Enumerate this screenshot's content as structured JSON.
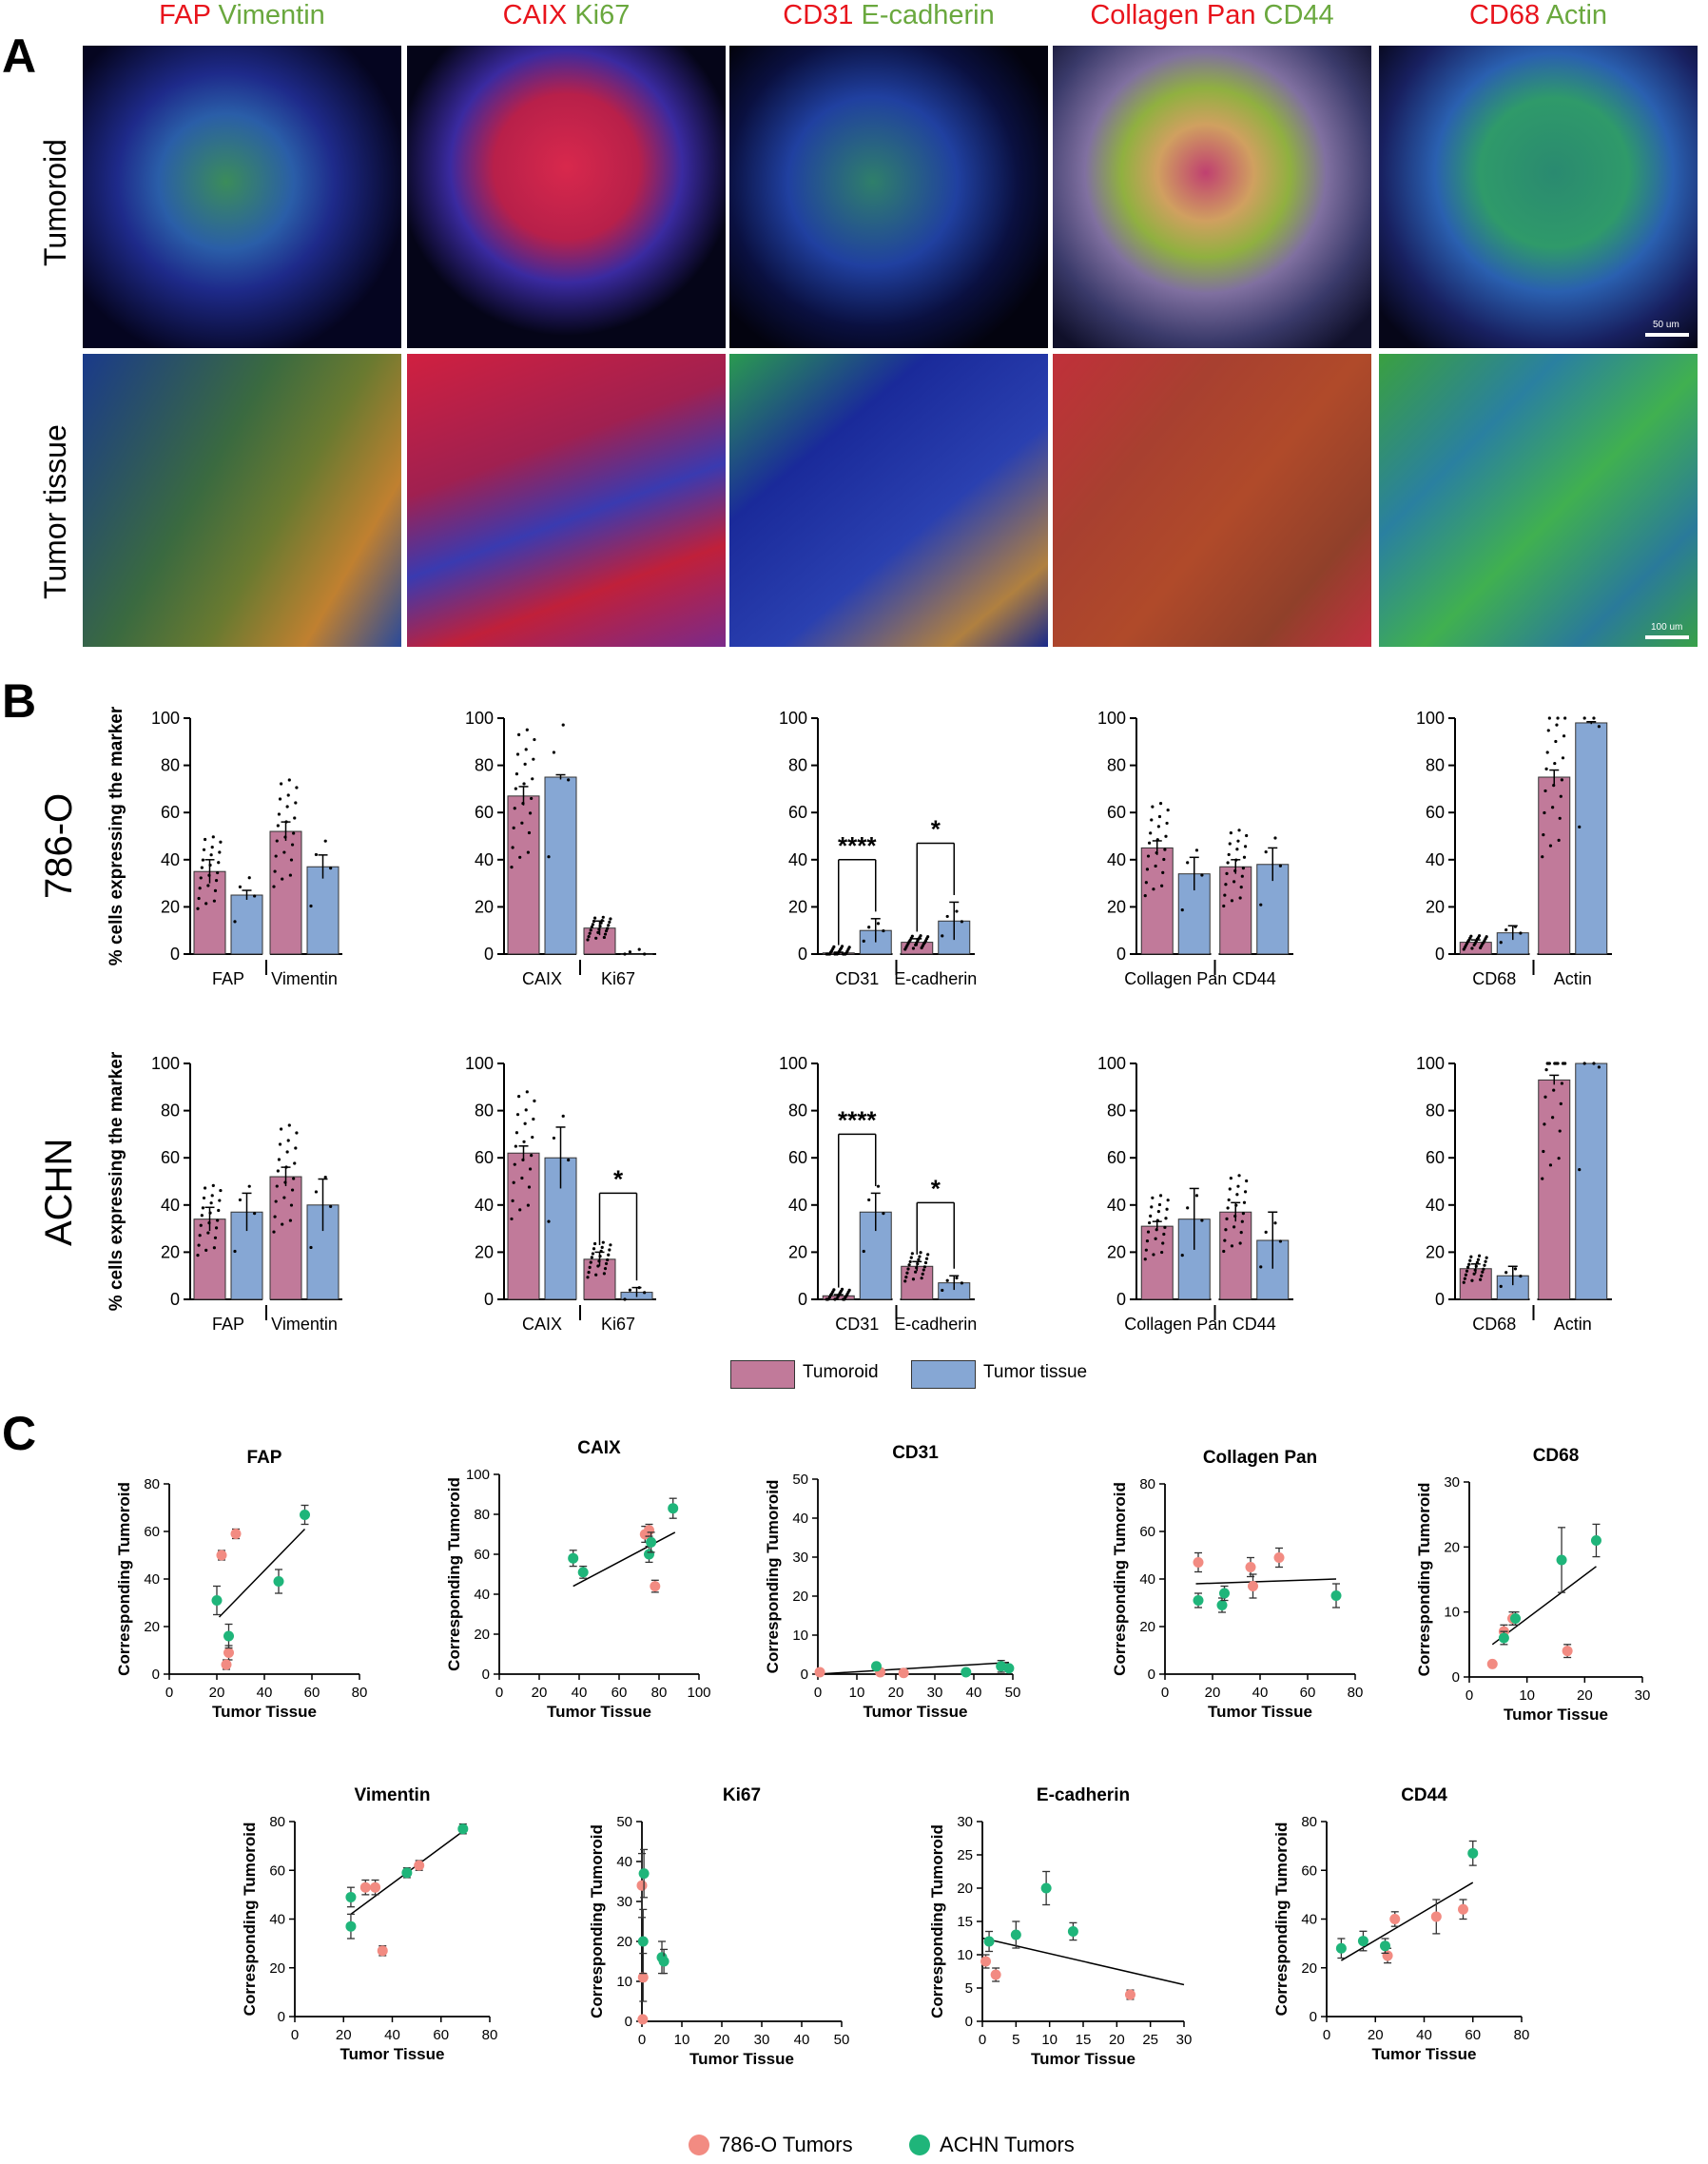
{
  "figure": {
    "panel_letters": {
      "a": "A",
      "b": "B",
      "c": "C"
    },
    "colors": {
      "red": "#e8141c",
      "green": "#6aa83e",
      "tumoroid_bar": "#c17a9a",
      "tissue_bar": "#86a7d4",
      "c786": "#f28b82",
      "achn": "#1fb57a"
    },
    "panel_a": {
      "headers": [
        {
          "red": "FAP",
          "green": "Vimentin"
        },
        {
          "red": "CAIX",
          "green": "Ki67"
        },
        {
          "red": "CD31",
          "green": "E-cadherin"
        },
        {
          "red": "Collagen Pan",
          "green": "CD44"
        },
        {
          "red": "CD68",
          "green": "Actin"
        }
      ],
      "row_labels": [
        "Tumoroid",
        "Tumor tissue"
      ],
      "scale_bars": [
        "50 um",
        "100 um"
      ],
      "image_icons": [
        "fluorescence-micrograph-icon"
      ]
    },
    "panel_b": {
      "y_label": "% cells expressing the marker",
      "cell_lines": [
        "786-O",
        "ACHN"
      ],
      "legend": {
        "tumoroid": "Tumoroid",
        "tissue": "Tumor tissue"
      }
    },
    "panel_c": {
      "x_label": "Tumor Tissue",
      "y_label": "Corresponding Tumoroid",
      "legend": {
        "c786": "786-O Tumors",
        "achn": "ACHN Tumors"
      }
    }
  },
  "chart_data": [
    {
      "type": "bar",
      "cell_line": "786-O",
      "categories": [
        "FAP",
        "Vimentin"
      ],
      "ylim": [
        0,
        100
      ],
      "yticks": [
        0,
        20,
        40,
        60,
        80,
        100
      ],
      "series": [
        {
          "name": "Tumoroid",
          "values": [
            35,
            52
          ],
          "errors": [
            5,
            4
          ]
        },
        {
          "name": "Tumor tissue",
          "values": [
            25,
            37
          ],
          "errors": [
            2,
            5
          ]
        }
      ],
      "significance": []
    },
    {
      "type": "bar",
      "cell_line": "786-O",
      "categories": [
        "CAIX",
        "Ki67"
      ],
      "ylim": [
        0,
        100
      ],
      "yticks": [
        0,
        20,
        40,
        60,
        80,
        100
      ],
      "series": [
        {
          "name": "Tumoroid",
          "values": [
            67,
            11
          ],
          "errors": [
            4,
            3
          ]
        },
        {
          "name": "Tumor tissue",
          "values": [
            75,
            0
          ],
          "errors": [
            1,
            0
          ]
        }
      ],
      "significance": []
    },
    {
      "type": "bar",
      "cell_line": "786-O",
      "categories": [
        "CD31",
        "E-cadherin"
      ],
      "ylim": [
        0,
        100
      ],
      "yticks": [
        0,
        20,
        40,
        60,
        80,
        100
      ],
      "series": [
        {
          "name": "Tumoroid",
          "values": [
            0.5,
            5
          ],
          "errors": [
            0.3,
            1.5
          ]
        },
        {
          "name": "Tumor tissue",
          "values": [
            10,
            14
          ],
          "errors": [
            5,
            8
          ]
        }
      ],
      "significance": [
        "****",
        "*"
      ]
    },
    {
      "type": "bar",
      "cell_line": "786-O",
      "categories": [
        "Collagen Pan",
        "CD44"
      ],
      "ylim": [
        0,
        100
      ],
      "yticks": [
        0,
        20,
        40,
        60,
        80,
        100
      ],
      "series": [
        {
          "name": "Tumoroid",
          "values": [
            45,
            37
          ],
          "errors": [
            3,
            3
          ]
        },
        {
          "name": "Tumor tissue",
          "values": [
            34,
            38
          ],
          "errors": [
            7,
            7
          ]
        }
      ],
      "significance": []
    },
    {
      "type": "bar",
      "cell_line": "786-O",
      "categories": [
        "CD68",
        "Actin"
      ],
      "ylim": [
        0,
        100
      ],
      "yticks": [
        0,
        20,
        40,
        60,
        80,
        100
      ],
      "series": [
        {
          "name": "Tumoroid",
          "values": [
            5,
            75
          ],
          "errors": [
            1,
            3
          ]
        },
        {
          "name": "Tumor tissue",
          "values": [
            9,
            98
          ],
          "errors": [
            3,
            0.5
          ]
        }
      ],
      "significance": []
    },
    {
      "type": "bar",
      "cell_line": "ACHN",
      "categories": [
        "FAP",
        "Vimentin"
      ],
      "ylim": [
        0,
        100
      ],
      "yticks": [
        0,
        20,
        40,
        60,
        80,
        100
      ],
      "series": [
        {
          "name": "Tumoroid",
          "values": [
            34,
            52
          ],
          "errors": [
            5,
            4
          ]
        },
        {
          "name": "Tumor tissue",
          "values": [
            37,
            40
          ],
          "errors": [
            8,
            11
          ]
        }
      ],
      "significance": []
    },
    {
      "type": "bar",
      "cell_line": "ACHN",
      "categories": [
        "CAIX",
        "Ki67"
      ],
      "ylim": [
        0,
        100
      ],
      "yticks": [
        0,
        20,
        40,
        60,
        80,
        100
      ],
      "series": [
        {
          "name": "Tumoroid",
          "values": [
            62,
            17
          ],
          "errors": [
            3,
            3
          ]
        },
        {
          "name": "Tumor tissue",
          "values": [
            60,
            3
          ],
          "errors": [
            13,
            2
          ]
        }
      ],
      "significance": [
        "",
        "*"
      ]
    },
    {
      "type": "bar",
      "cell_line": "ACHN",
      "categories": [
        "CD31",
        "E-cadherin"
      ],
      "ylim": [
        0,
        100
      ],
      "yticks": [
        0,
        20,
        40,
        60,
        80,
        100
      ],
      "series": [
        {
          "name": "Tumoroid",
          "values": [
            1.5,
            14
          ],
          "errors": [
            0.5,
            2
          ]
        },
        {
          "name": "Tumor tissue",
          "values": [
            37,
            7
          ],
          "errors": [
            8,
            3
          ]
        }
      ],
      "significance": [
        "****",
        "*"
      ]
    },
    {
      "type": "bar",
      "cell_line": "ACHN",
      "categories": [
        "Collagen Pan",
        "CD44"
      ],
      "ylim": [
        0,
        100
      ],
      "yticks": [
        0,
        20,
        40,
        60,
        80,
        100
      ],
      "series": [
        {
          "name": "Tumoroid",
          "values": [
            31,
            37
          ],
          "errors": [
            2,
            4
          ]
        },
        {
          "name": "Tumor tissue",
          "values": [
            34,
            25
          ],
          "errors": [
            13,
            12
          ]
        }
      ],
      "significance": []
    },
    {
      "type": "bar",
      "cell_line": "ACHN",
      "categories": [
        "CD68",
        "Actin"
      ],
      "ylim": [
        0,
        100
      ],
      "yticks": [
        0,
        20,
        40,
        60,
        80,
        100
      ],
      "series": [
        {
          "name": "Tumoroid",
          "values": [
            13,
            93
          ],
          "errors": [
            2,
            2
          ]
        },
        {
          "name": "Tumor tissue",
          "values": [
            10,
            100
          ],
          "errors": [
            4,
            0
          ]
        }
      ],
      "significance": []
    },
    {
      "type": "scatter",
      "title": "FAP",
      "xlim": [
        0,
        80
      ],
      "ylim": [
        0,
        80
      ],
      "xticks": [
        0,
        20,
        40,
        60,
        80
      ],
      "yticks": [
        0,
        20,
        40,
        60,
        80
      ],
      "fit": [
        [
          21,
          24
        ],
        [
          57,
          61
        ]
      ],
      "series": [
        {
          "name": "786-O Tumors",
          "points": [
            [
              22,
              50,
              2
            ],
            [
              28,
              59,
              2
            ],
            [
              25,
              9,
              3
            ],
            [
              24,
              4,
              2
            ]
          ]
        },
        {
          "name": "ACHN Tumors",
          "points": [
            [
              20,
              31,
              6
            ],
            [
              25,
              16,
              5
            ],
            [
              46,
              39,
              5
            ],
            [
              57,
              67,
              4
            ]
          ]
        }
      ]
    },
    {
      "type": "scatter",
      "title": "CAIX",
      "xlim": [
        0,
        100
      ],
      "ylim": [
        0,
        100
      ],
      "xticks": [
        0,
        20,
        40,
        60,
        80,
        100
      ],
      "yticks": [
        0,
        20,
        40,
        60,
        80,
        100
      ],
      "fit": [
        [
          37,
          44
        ],
        [
          88,
          71
        ]
      ],
      "series": [
        {
          "name": "786-O Tumors",
          "points": [
            [
              73,
              70,
              4
            ],
            [
              75,
              72,
              3
            ],
            [
              78,
              44,
              3
            ]
          ]
        },
        {
          "name": "ACHN Tumors",
          "points": [
            [
              37,
              58,
              4
            ],
            [
              42,
              51,
              3
            ],
            [
              75,
              60,
              4
            ],
            [
              76,
              66,
              5
            ],
            [
              87,
              83,
              5
            ]
          ]
        }
      ]
    },
    {
      "type": "scatter",
      "title": "CD31",
      "xlim": [
        0,
        50
      ],
      "ylim": [
        0,
        50
      ],
      "xticks": [
        0,
        10,
        20,
        30,
        40,
        50
      ],
      "yticks": [
        0,
        10,
        20,
        30,
        40,
        50
      ],
      "fit": [
        [
          0,
          0
        ],
        [
          49,
          3
        ]
      ],
      "series": [
        {
          "name": "786-O Tumors",
          "points": [
            [
              0.5,
              0.5,
              0.3
            ],
            [
              16,
              0.5,
              0.3
            ],
            [
              22,
              0.3,
              0.3
            ]
          ]
        },
        {
          "name": "ACHN Tumors",
          "points": [
            [
              15,
              2,
              0.5
            ],
            [
              38,
              0.5,
              0.3
            ],
            [
              47,
              2,
              1.5
            ],
            [
              49,
              1.5,
              0.5
            ]
          ]
        }
      ]
    },
    {
      "type": "scatter",
      "title": "Collagen Pan",
      "xlim": [
        0,
        80
      ],
      "ylim": [
        0,
        80
      ],
      "xticks": [
        0,
        20,
        40,
        60,
        80
      ],
      "yticks": [
        0,
        20,
        40,
        60,
        80
      ],
      "fit": [
        [
          13,
          38
        ],
        [
          72,
          40
        ]
      ],
      "series": [
        {
          "name": "786-O Tumors",
          "points": [
            [
              14,
              47,
              4
            ],
            [
              36,
              45,
              4
            ],
            [
              37,
              37,
              5
            ],
            [
              48,
              49,
              4
            ]
          ]
        },
        {
          "name": "ACHN Tumors",
          "points": [
            [
              14,
              31,
              3
            ],
            [
              24,
              29,
              3
            ],
            [
              25,
              34,
              3
            ],
            [
              72,
              33,
              5
            ]
          ]
        }
      ]
    },
    {
      "type": "scatter",
      "title": "CD68",
      "xlim": [
        0,
        30
      ],
      "ylim": [
        0,
        30
      ],
      "xticks": [
        0,
        10,
        20,
        30
      ],
      "yticks": [
        0,
        10,
        20,
        30
      ],
      "fit": [
        [
          4,
          5
        ],
        [
          22,
          17
        ]
      ],
      "series": [
        {
          "name": "786-O Tumors",
          "points": [
            [
              4,
              2,
              0.3
            ],
            [
              6,
              7,
              1
            ],
            [
              7.5,
              9,
              1
            ],
            [
              17,
              4,
              1
            ]
          ]
        },
        {
          "name": "ACHN Tumors",
          "points": [
            [
              6,
              6,
              1
            ],
            [
              8,
              9,
              1
            ],
            [
              16,
              18,
              5
            ],
            [
              22,
              21,
              2.5
            ]
          ]
        }
      ]
    },
    {
      "type": "scatter",
      "title": "Vimentin",
      "xlim": [
        0,
        80
      ],
      "ylim": [
        0,
        80
      ],
      "xticks": [
        0,
        20,
        40,
        60,
        80
      ],
      "yticks": [
        0,
        20,
        40,
        60,
        80
      ],
      "fit": [
        [
          23,
          42
        ],
        [
          69,
          76
        ]
      ],
      "series": [
        {
          "name": "786-O Tumors",
          "points": [
            [
              29,
              53,
              3
            ],
            [
              33,
              53,
              3
            ],
            [
              36,
              27,
              2
            ],
            [
              51,
              62,
              2
            ]
          ]
        },
        {
          "name": "ACHN Tumors",
          "points": [
            [
              23,
              49,
              4
            ],
            [
              23,
              37,
              5
            ],
            [
              46,
              59,
              2
            ],
            [
              69,
              77,
              2
            ]
          ]
        }
      ]
    },
    {
      "type": "scatter",
      "title": "Ki67",
      "xlim": [
        0,
        50
      ],
      "ylim": [
        0,
        50
      ],
      "xticks": [
        0,
        10,
        20,
        30,
        40,
        50
      ],
      "yticks": [
        0,
        10,
        20,
        30,
        40,
        50
      ],
      "fit": [],
      "series": [
        {
          "name": "786-O Tumors",
          "points": [
            [
              0,
              34,
              8
            ],
            [
              0.3,
              11,
              6
            ],
            [
              0.2,
              0.5,
              0.5
            ]
          ]
        },
        {
          "name": "ACHN Tumors",
          "points": [
            [
              0.5,
              37,
              6
            ],
            [
              0.3,
              20,
              8
            ],
            [
              5,
              16,
              4
            ],
            [
              5.5,
              15,
              3
            ]
          ]
        }
      ]
    },
    {
      "type": "scatter",
      "title": "E-cadherin",
      "xlim": [
        0,
        30
      ],
      "ylim": [
        0,
        30
      ],
      "xticks": [
        0,
        5,
        10,
        15,
        20,
        25,
        30
      ],
      "yticks": [
        0,
        5,
        10,
        15,
        20,
        25,
        30
      ],
      "fit": [
        [
          0,
          12.5
        ],
        [
          30,
          5.5
        ]
      ],
      "series": [
        {
          "name": "786-O Tumors",
          "points": [
            [
              0.5,
              9,
              1
            ],
            [
              2,
              7,
              1
            ],
            [
              22,
              4,
              0.7
            ]
          ]
        },
        {
          "name": "ACHN Tumors",
          "points": [
            [
              1,
              12,
              1.5
            ],
            [
              5,
              13,
              2
            ],
            [
              9.5,
              20,
              2.5
            ],
            [
              13.5,
              13.5,
              1.3
            ]
          ]
        }
      ]
    },
    {
      "type": "scatter",
      "title": "CD44",
      "xlim": [
        0,
        80
      ],
      "ylim": [
        0,
        80
      ],
      "xticks": [
        0,
        20,
        40,
        60,
        80
      ],
      "yticks": [
        0,
        20,
        40,
        60,
        80
      ],
      "fit": [
        [
          6,
          23
        ],
        [
          60,
          55
        ]
      ],
      "series": [
        {
          "name": "786-O Tumors",
          "points": [
            [
              25,
              25,
              3
            ],
            [
              28,
              40,
              3
            ],
            [
              45,
              41,
              7
            ],
            [
              56,
              44,
              4
            ]
          ]
        },
        {
          "name": "ACHN Tumors",
          "points": [
            [
              6,
              28,
              4
            ],
            [
              15,
              31,
              4
            ],
            [
              24,
              29,
              3
            ],
            [
              60,
              67,
              5
            ]
          ]
        }
      ]
    }
  ]
}
